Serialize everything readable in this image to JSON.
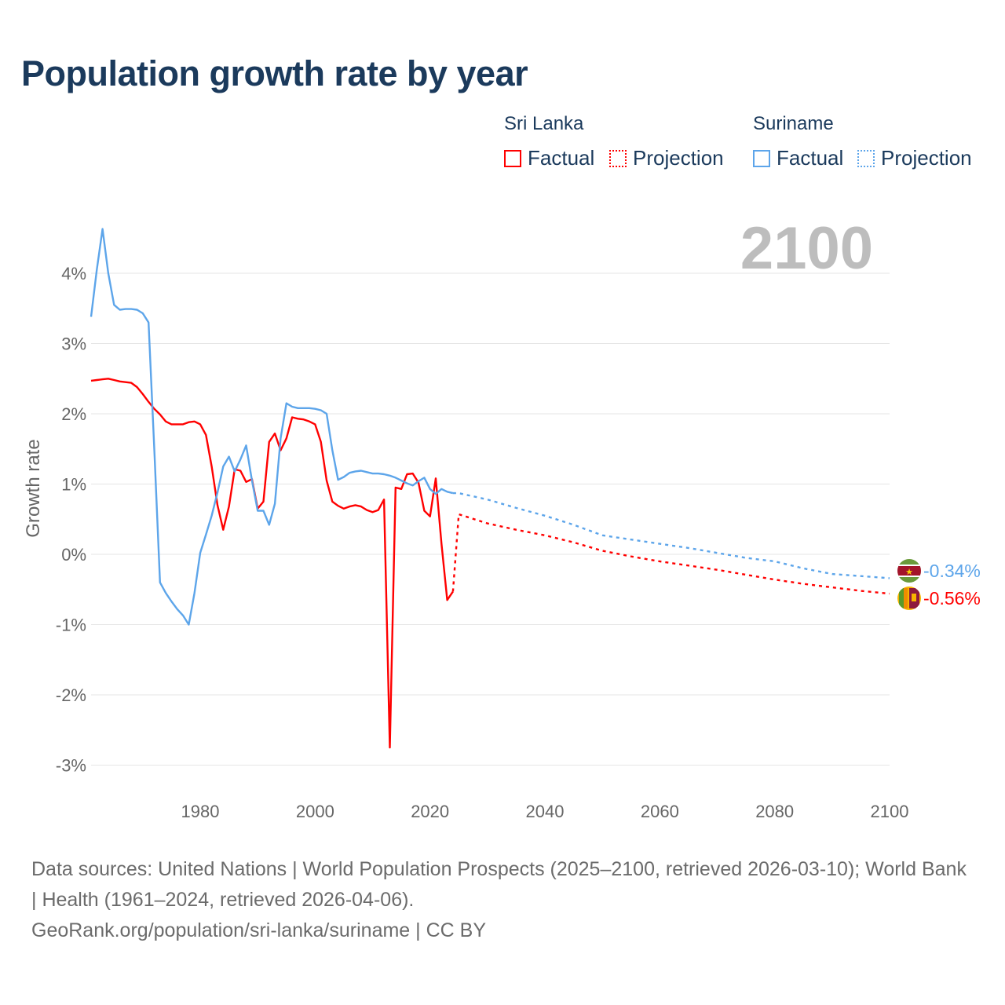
{
  "title": "Population growth rate by year",
  "legend": {
    "groups": [
      {
        "name": "Sri Lanka",
        "color": "#ff0000",
        "factual": "Factual",
        "projection": "Projection"
      },
      {
        "name": "Suriname",
        "color": "#5da5ea",
        "factual": "Factual",
        "projection": "Projection"
      }
    ]
  },
  "year_label": "2100",
  "footer": {
    "sources": "Data sources: United Nations | World Population Prospects (2025–2100, retrieved 2026-03-10); World Bank | Health (1961–2024, retrieved 2026-04-06).",
    "credit": "GeoRank.org/population/sri-lanka/suriname | CC BY"
  },
  "chart_data": {
    "type": "line",
    "title": "Population growth rate by year",
    "xlabel": "",
    "ylabel": "Growth rate",
    "xlim": [
      1961,
      2100
    ],
    "ylim": [
      -3.4,
      4.7
    ],
    "xticks": [
      1980,
      2000,
      2020,
      2040,
      2060,
      2080,
      2100
    ],
    "yticks": [
      {
        "v": 4,
        "label": "4%"
      },
      {
        "v": 3,
        "label": "3%"
      },
      {
        "v": 2,
        "label": "2%"
      },
      {
        "v": 1,
        "label": "1%"
      },
      {
        "v": 0,
        "label": "0%"
      },
      {
        "v": -1,
        "label": "-1%"
      },
      {
        "v": -2,
        "label": "-2%"
      },
      {
        "v": -3,
        "label": "-3%"
      }
    ],
    "grid": true,
    "series": [
      {
        "name": "Sri Lanka",
        "kind": "factual",
        "color": "#ff0000",
        "x_start": 1961,
        "values": [
          2.47,
          2.48,
          2.49,
          2.5,
          2.48,
          2.46,
          2.45,
          2.44,
          2.38,
          2.28,
          2.17,
          2.07,
          1.99,
          1.89,
          1.85,
          1.85,
          1.85,
          1.88,
          1.89,
          1.85,
          1.7,
          1.25,
          0.7,
          0.35,
          0.68,
          1.21,
          1.19,
          1.03,
          1.07,
          0.65,
          0.75,
          1.6,
          1.72,
          1.48,
          1.65,
          1.95,
          1.93,
          1.92,
          1.89,
          1.85,
          1.6,
          1.05,
          0.75,
          0.69,
          0.65,
          0.68,
          0.7,
          0.68,
          0.63,
          0.6,
          0.63,
          0.78,
          -2.75,
          0.95,
          0.93,
          1.14,
          1.15,
          1.02,
          0.62,
          0.54,
          1.08,
          0.15,
          -0.65,
          -0.53
        ]
      },
      {
        "name": "Sri Lanka",
        "kind": "projection",
        "color": "#ff0000",
        "x": [
          2024,
          2025,
          2030,
          2035,
          2040,
          2045,
          2050,
          2055,
          2060,
          2065,
          2070,
          2075,
          2080,
          2085,
          2090,
          2095,
          2100
        ],
        "values": [
          -0.53,
          0.57,
          0.44,
          0.35,
          0.27,
          0.17,
          0.05,
          -0.03,
          -0.1,
          -0.16,
          -0.22,
          -0.29,
          -0.36,
          -0.42,
          -0.47,
          -0.52,
          -0.56
        ]
      },
      {
        "name": "Suriname",
        "kind": "factual",
        "color": "#5da5ea",
        "x_start": 1961,
        "values": [
          3.38,
          4.05,
          4.63,
          4.0,
          3.55,
          3.48,
          3.49,
          3.49,
          3.48,
          3.43,
          3.3,
          1.5,
          -0.4,
          -0.55,
          -0.67,
          -0.78,
          -0.87,
          -1.0,
          -0.55,
          0.02,
          0.28,
          0.55,
          0.88,
          1.25,
          1.39,
          1.18,
          1.35,
          1.55,
          1.05,
          0.62,
          0.62,
          0.42,
          0.72,
          1.65,
          2.15,
          2.1,
          2.08,
          2.08,
          2.08,
          2.07,
          2.05,
          2.0,
          1.48,
          1.06,
          1.1,
          1.16,
          1.18,
          1.19,
          1.17,
          1.15,
          1.15,
          1.14,
          1.12,
          1.09,
          1.05,
          1.01,
          0.98,
          1.04,
          1.09,
          0.93,
          0.86,
          0.93,
          0.89,
          0.87
        ]
      },
      {
        "name": "Suriname",
        "kind": "projection",
        "color": "#5da5ea",
        "x": [
          2024,
          2025,
          2030,
          2035,
          2040,
          2045,
          2050,
          2055,
          2060,
          2065,
          2070,
          2075,
          2080,
          2085,
          2090,
          2095,
          2100
        ],
        "values": [
          0.87,
          0.87,
          0.78,
          0.66,
          0.55,
          0.42,
          0.27,
          0.21,
          0.15,
          0.09,
          0.02,
          -0.05,
          -0.1,
          -0.2,
          -0.28,
          -0.31,
          -0.34
        ]
      }
    ],
    "end_labels": [
      {
        "name": "Suriname",
        "label": "-0.34%",
        "color": "#5da5ea"
      },
      {
        "name": "Sri Lanka",
        "label": "-0.56%",
        "color": "#ff0000"
      }
    ]
  }
}
